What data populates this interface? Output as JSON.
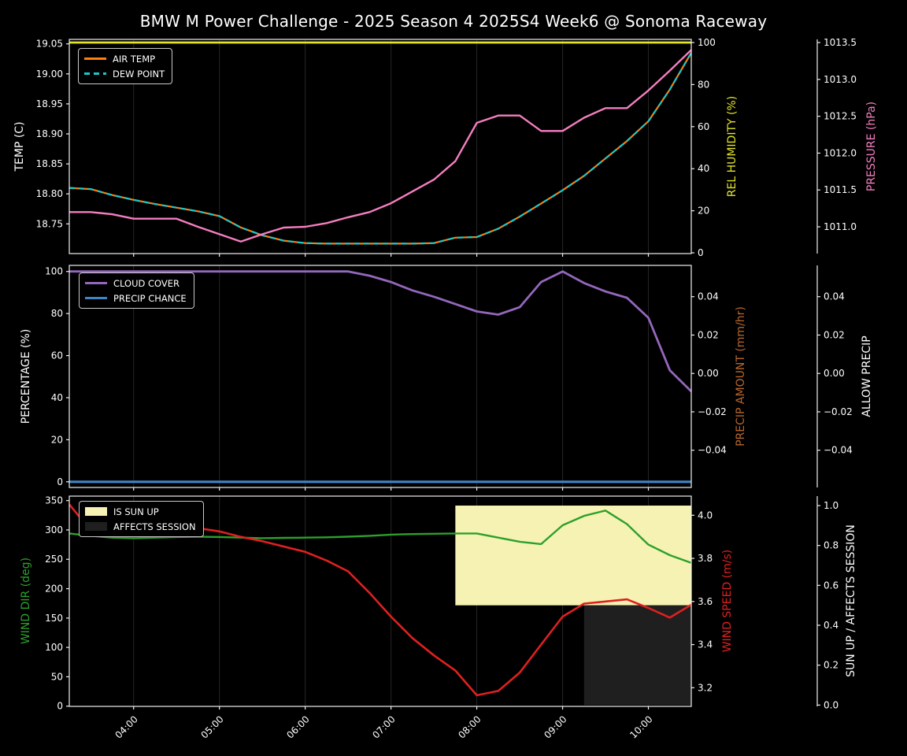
{
  "title": "BMW M Power Challenge - 2025 Season 4 2025S4 Week6 @ Sonoma Raceway",
  "colors": {
    "background": "#000000",
    "frame": "#efefef",
    "grid": "#262626",
    "text": "#ffffff",
    "air_temp": "#ff7f0e",
    "dew_point": "#1ac8c8",
    "rel_humidity": "#e2e32b",
    "pressure": "#f57ec0",
    "cloud_cover": "#9467bd",
    "precip_chance": "#4086c6",
    "precip_amount_label": "#b5672d",
    "allow_precip_label": "#ffffff",
    "wind_dir": "#2ca02c",
    "wind_speed": "#df2020",
    "sun_up_fill": "#f6f2b3",
    "affects_session_fill": "#1f1f1f"
  },
  "chart_data": [
    {
      "type": "line",
      "xlim": [
        "03:15",
        "10:30"
      ],
      "x_ticks": [
        "04:00",
        "05:00",
        "06:00",
        "07:00",
        "08:00",
        "09:00",
        "10:00"
      ],
      "x_times": [
        "03:15",
        "03:30",
        "03:45",
        "04:00",
        "04:15",
        "04:30",
        "04:45",
        "05:00",
        "05:15",
        "05:30",
        "05:45",
        "06:00",
        "06:15",
        "06:30",
        "06:45",
        "07:00",
        "07:15",
        "07:30",
        "07:45",
        "08:00",
        "08:15",
        "08:30",
        "08:45",
        "09:00",
        "09:15",
        "09:30",
        "09:45",
        "10:00",
        "10:15",
        "10:30"
      ],
      "axes": {
        "left": {
          "label": "TEMP (C)",
          "ticks": [
            19.05,
            19.0,
            18.95,
            18.9,
            18.85,
            18.8,
            18.75
          ],
          "tick_labels": [
            "19.05",
            "19.00",
            "18.95",
            "18.90",
            "18.85",
            "18.80",
            "18.75"
          ],
          "range": [
            18.7005,
            19.0575
          ]
        },
        "right1": {
          "label": "REL HUMIDITY (%)",
          "ticks": [
            100,
            80,
            60,
            40,
            20,
            0
          ],
          "tick_labels": [
            "100",
            "80",
            "60",
            "40",
            "20",
            "0"
          ],
          "range": [
            -0.37,
            101.5
          ]
        },
        "right2": {
          "label": "PRESSURE (hPa)",
          "ticks": [
            1013.5,
            1013.0,
            1012.5,
            1012.0,
            1011.5,
            1011.0
          ],
          "tick_labels": [
            "1013.5",
            "1013.0",
            "1012.5",
            "1012.0",
            "1011.5",
            "1011.0"
          ],
          "range": [
            1010.637,
            1013.543
          ]
        }
      },
      "legend": [
        "AIR TEMP",
        "DEW POINT"
      ],
      "series": [
        {
          "name": "AIR TEMP",
          "data_name": "air-temp-line",
          "axis": "left",
          "color_key": "air_temp",
          "dashed": false,
          "width": 2.2,
          "values": [
            18.81,
            18.808,
            18.798,
            18.79,
            18.783,
            18.777,
            18.771,
            18.763,
            18.744,
            18.731,
            18.722,
            18.718,
            18.717,
            18.717,
            18.717,
            18.717,
            18.717,
            18.718,
            18.727,
            18.728,
            18.742,
            18.762,
            18.784,
            18.806,
            18.83,
            18.859,
            18.888,
            18.921,
            18.974,
            19.035
          ]
        },
        {
          "name": "DEW POINT",
          "data_name": "dew-point-line",
          "axis": "left",
          "color_key": "dew_point",
          "dashed": true,
          "width": 2.2,
          "values": [
            18.81,
            18.808,
            18.798,
            18.79,
            18.783,
            18.777,
            18.771,
            18.763,
            18.744,
            18.731,
            18.722,
            18.718,
            18.717,
            18.717,
            18.717,
            18.717,
            18.717,
            18.718,
            18.727,
            18.728,
            18.742,
            18.762,
            18.784,
            18.806,
            18.83,
            18.859,
            18.888,
            18.921,
            18.974,
            19.035
          ]
        },
        {
          "name": "REL HUMIDITY",
          "data_name": "rel-humidity-line",
          "axis": "right1",
          "color_key": "rel_humidity",
          "dashed": false,
          "width": 2.8,
          "values": [
            100,
            100,
            100,
            100,
            100,
            100,
            100,
            100,
            100,
            100,
            100,
            100,
            100,
            100,
            100,
            100,
            100,
            100,
            100,
            100,
            100,
            100,
            100,
            100,
            100,
            100,
            100,
            100,
            100,
            100
          ]
        },
        {
          "name": "PRESSURE",
          "data_name": "pressure-line",
          "axis": "right2",
          "color_key": "pressure",
          "dashed": false,
          "width": 2.4,
          "values": [
            1011.2,
            1011.2,
            1011.17,
            1011.11,
            1011.11,
            1011.11,
            1011.0,
            1010.9,
            1010.8,
            1010.9,
            1010.99,
            1011.0,
            1011.05,
            1011.13,
            1011.2,
            1011.32,
            1011.48,
            1011.64,
            1011.89,
            1012.41,
            1012.51,
            1012.51,
            1012.3,
            1012.3,
            1012.48,
            1012.61,
            1012.61,
            1012.85,
            1013.12,
            1013.4
          ]
        }
      ]
    },
    {
      "type": "line",
      "xlim": [
        "03:15",
        "10:30"
      ],
      "x_ticks": [
        "04:00",
        "05:00",
        "06:00",
        "07:00",
        "08:00",
        "09:00",
        "10:00"
      ],
      "x_times": [
        "03:15",
        "03:30",
        "03:45",
        "04:00",
        "04:15",
        "04:30",
        "04:45",
        "05:00",
        "05:15",
        "05:30",
        "05:45",
        "06:00",
        "06:15",
        "06:30",
        "06:45",
        "07:00",
        "07:15",
        "07:30",
        "07:45",
        "08:00",
        "08:15",
        "08:30",
        "08:45",
        "09:00",
        "09:15",
        "09:30",
        "09:45",
        "10:00",
        "10:15",
        "10:30"
      ],
      "axes": {
        "left": {
          "label": "PERCENTAGE (%)",
          "ticks": [
            100,
            80,
            60,
            40,
            20,
            0
          ],
          "tick_labels": [
            "100",
            "80",
            "60",
            "40",
            "20",
            "0"
          ],
          "range": [
            -2.7,
            102.9
          ]
        },
        "right1": {
          "label": "PRECIP AMOUNT (mm/hr)",
          "ticks": [
            0.04,
            0.02,
            0.0,
            -0.02,
            -0.04
          ],
          "tick_labels": [
            "0.04",
            "0.02",
            "0.00",
            "−0.02",
            "−0.04"
          ],
          "range": [
            -0.0594,
            0.0563
          ]
        },
        "right2": {
          "label": "ALLOW PRECIP",
          "ticks": [
            0.04,
            0.02,
            0.0,
            -0.02,
            -0.04
          ],
          "tick_labels": [
            "0.04",
            "0.02",
            "0.00",
            "−0.02",
            "−0.04"
          ],
          "range": [
            -0.0594,
            0.0563
          ]
        }
      },
      "legend": [
        "CLOUD COVER",
        "PRECIP CHANCE"
      ],
      "series": [
        {
          "name": "CLOUD COVER",
          "data_name": "cloud-cover-line",
          "axis": "left",
          "color_key": "cloud_cover",
          "dashed": false,
          "width": 2.8,
          "values": [
            100,
            100,
            100,
            100,
            100,
            100,
            100,
            100,
            100,
            100,
            100,
            100,
            100,
            100,
            98,
            95,
            91,
            88,
            84.5,
            81,
            79.5,
            83,
            95,
            100,
            94.5,
            90.5,
            87.5,
            78,
            53,
            43
          ]
        },
        {
          "name": "PRECIP CHANCE",
          "data_name": "precip-chance-line",
          "axis": "left",
          "color_key": "precip_chance",
          "dashed": false,
          "width": 3.2,
          "values": [
            0,
            0,
            0,
            0,
            0,
            0,
            0,
            0,
            0,
            0,
            0,
            0,
            0,
            0,
            0,
            0,
            0,
            0,
            0,
            0,
            0,
            0,
            0,
            0,
            0,
            0,
            0,
            0,
            0,
            0
          ]
        }
      ]
    },
    {
      "type": "line",
      "xlim": [
        "03:15",
        "10:30"
      ],
      "x_ticks": [
        "04:00",
        "05:00",
        "06:00",
        "07:00",
        "08:00",
        "09:00",
        "10:00"
      ],
      "x_times": [
        "03:15",
        "03:30",
        "03:45",
        "04:00",
        "04:15",
        "04:30",
        "04:45",
        "05:00",
        "05:15",
        "05:30",
        "05:45",
        "06:00",
        "06:15",
        "06:30",
        "06:45",
        "07:00",
        "07:15",
        "07:30",
        "07:45",
        "08:00",
        "08:15",
        "08:30",
        "08:45",
        "09:00",
        "09:15",
        "09:30",
        "09:45",
        "10:00",
        "10:15",
        "10:30"
      ],
      "axes": {
        "left": {
          "label": "WIND DIR (deg)",
          "ticks": [
            350,
            300,
            250,
            200,
            150,
            100,
            50,
            0
          ],
          "tick_labels": [
            "350",
            "300",
            "250",
            "200",
            "150",
            "100",
            "50",
            "0"
          ],
          "range": [
            -0.4,
            357.6
          ]
        },
        "right1": {
          "label": "WIND SPEED (m/s)",
          "ticks": [
            4.0,
            3.8,
            3.6,
            3.4,
            3.2
          ],
          "tick_labels": [
            "4.0",
            "3.8",
            "3.6",
            "3.4",
            "3.2"
          ],
          "range": [
            3.1134,
            4.0888
          ]
        },
        "right2": {
          "label": "SUN UP / AFFECTS SESSION",
          "ticks": [
            1.0,
            0.8,
            0.6,
            0.4,
            0.2,
            0.0
          ],
          "tick_labels": [
            "1.0",
            "0.8",
            "0.6",
            "0.4",
            "0.2",
            "0.0"
          ],
          "range": [
            -0.0067,
            1.0474
          ]
        }
      },
      "legend": [
        "IS SUN UP",
        "AFFECTS SESSION"
      ],
      "bands": [
        {
          "label": "IS SUN UP",
          "from": "07:45",
          "to": "10:30",
          "y_range": [
            0.5,
            1.0
          ],
          "color_key": "sun_up_fill"
        },
        {
          "label": "AFFECTS SESSION",
          "from": "09:15",
          "to": "10:30",
          "y_range": [
            0.0,
            0.5
          ],
          "color_key": "affects_session_fill"
        }
      ],
      "series": [
        {
          "name": "WIND DIR",
          "data_name": "wind-dir-line",
          "axis": "left",
          "color_key": "wind_dir",
          "dashed": false,
          "width": 2.4,
          "values": [
            294,
            290,
            287,
            286,
            287,
            288,
            288.5,
            288,
            287,
            286,
            286.5,
            287,
            287.5,
            288.5,
            290,
            292,
            293,
            293.5,
            294,
            294,
            287,
            280,
            276,
            308,
            324,
            333,
            310,
            275,
            257,
            244
          ]
        },
        {
          "name": "WIND SPEED",
          "data_name": "wind-speed-line",
          "axis": "right1",
          "color_key": "wind_speed",
          "dashed": false,
          "width": 2.6,
          "values": [
            4.05,
            3.93,
            3.945,
            3.955,
            3.97,
            3.955,
            3.94,
            3.925,
            3.9,
            3.88,
            3.855,
            3.83,
            3.79,
            3.74,
            3.64,
            3.53,
            3.43,
            3.35,
            3.28,
            3.165,
            3.185,
            3.27,
            3.4,
            3.53,
            3.59,
            3.6,
            3.61,
            3.57,
            3.525,
            3.585
          ]
        }
      ]
    }
  ]
}
